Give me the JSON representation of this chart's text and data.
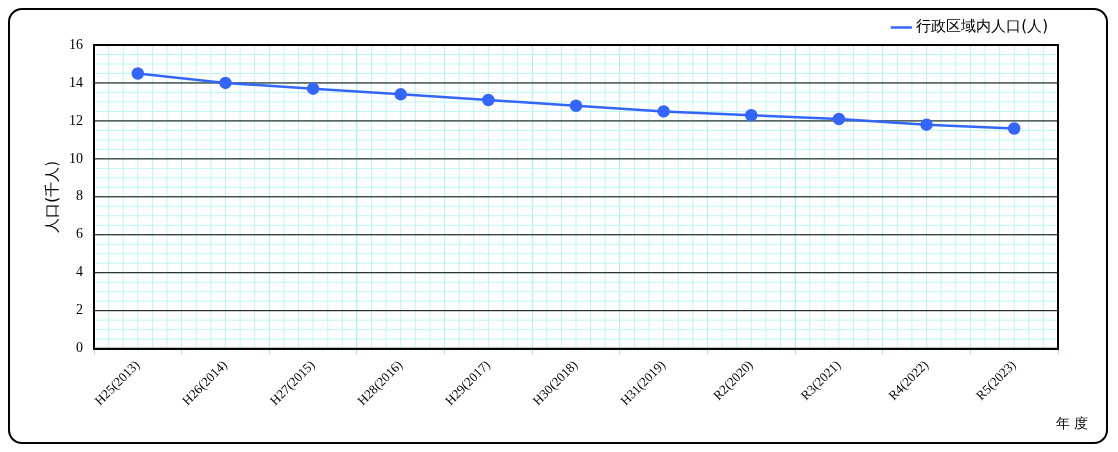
{
  "chart_data": {
    "type": "line",
    "xlabel": "年 度",
    "ylabel": "人口(千人)",
    "categories": [
      "H25(2013)",
      "H26(2014)",
      "H27(2015)",
      "H28(2016)",
      "H29(2017)",
      "H30(2018)",
      "H31(2019)",
      "R2(2020)",
      "R3(2021)",
      "R4(2022)",
      "R5(2023)"
    ],
    "series": [
      {
        "name": "行政区域内人口(人)",
        "color": "#3366ff",
        "values": [
          14.5,
          14.0,
          13.7,
          13.4,
          13.1,
          12.8,
          12.5,
          12.3,
          12.1,
          11.8,
          11.6
        ]
      }
    ],
    "ylim": [
      0,
      16
    ],
    "yticks": [
      0,
      2,
      4,
      6,
      8,
      10,
      12,
      14,
      16
    ],
    "grid": true,
    "legend": "top right",
    "marker": "circle",
    "line_style": "solid"
  }
}
